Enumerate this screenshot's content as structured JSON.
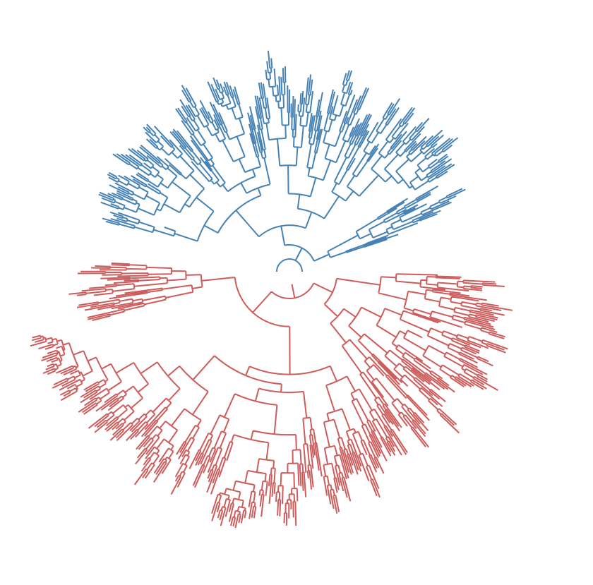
{
  "clades": [
    {
      "color": "#4682b4"
    },
    {
      "color": "#cd5c5c"
    }
  ]
}
